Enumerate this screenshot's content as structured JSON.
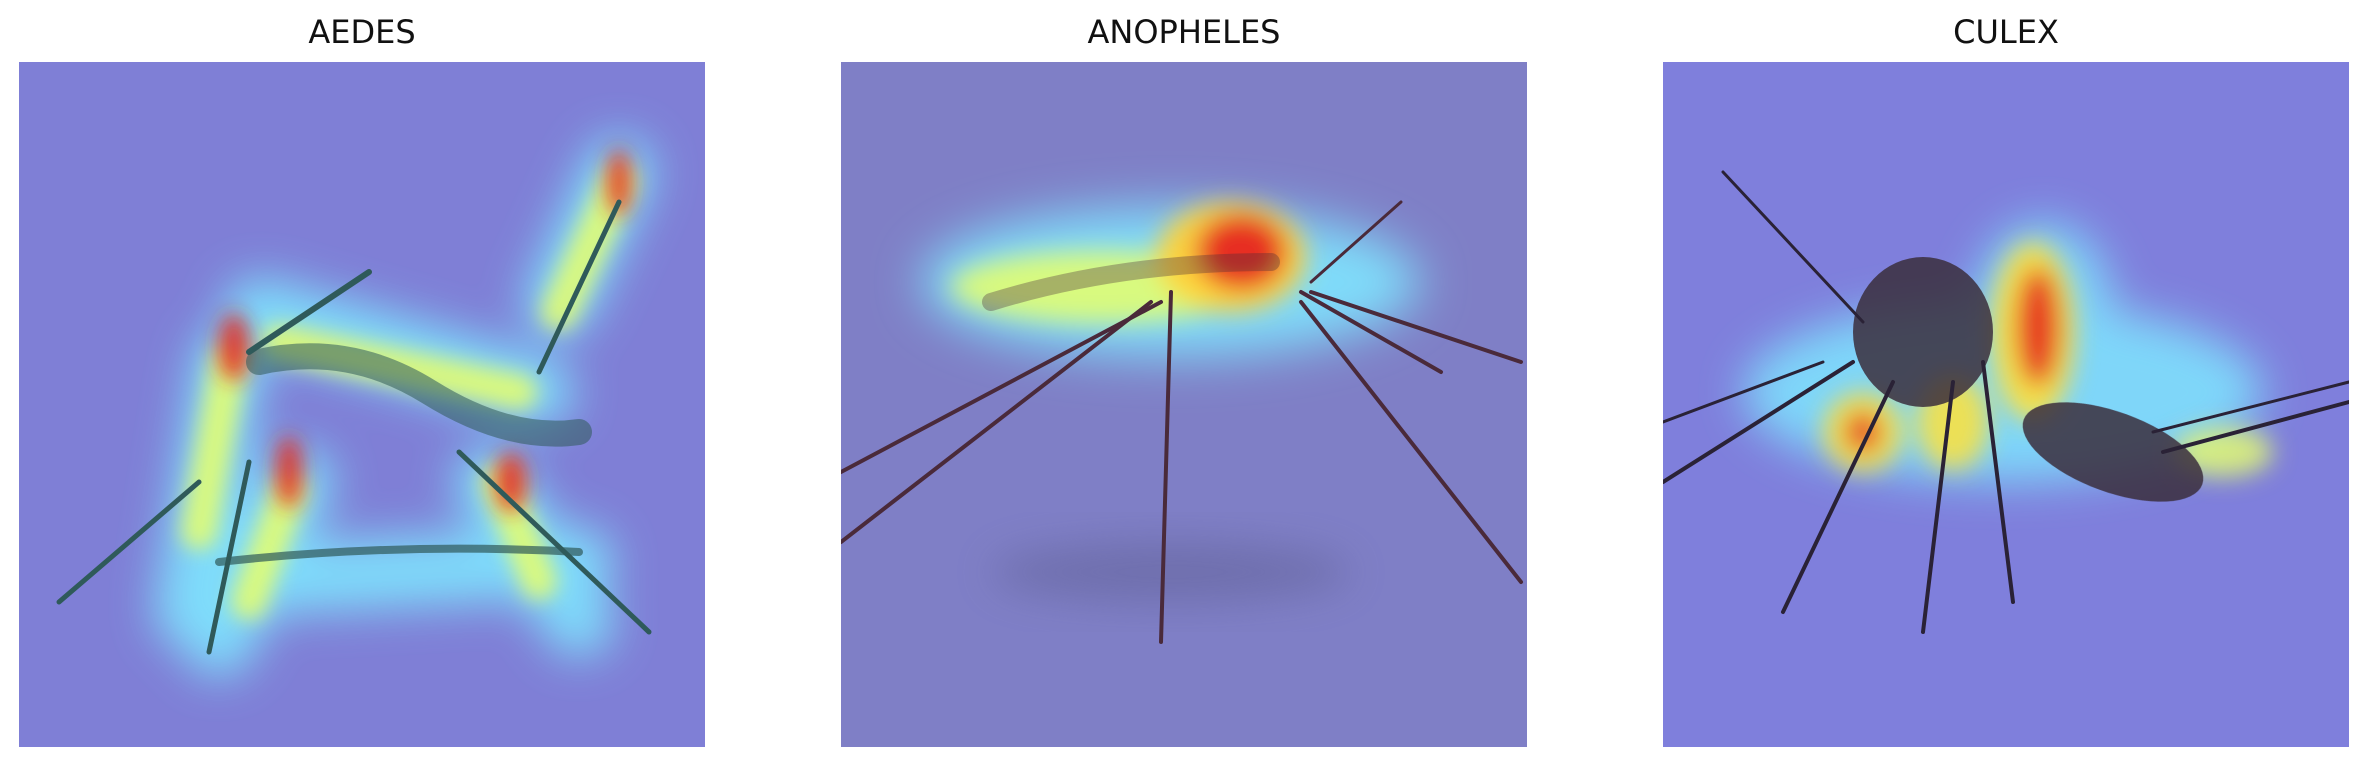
{
  "panels": [
    {
      "title": "AEDES",
      "image_description": "Grad-CAM heatmap overlay on an Aedes mosquito photo"
    },
    {
      "title": "ANOPHELES",
      "image_description": "Grad-CAM heatmap overlay on an Anopheles mosquito photo"
    },
    {
      "title": "CULEX",
      "image_description": "Grad-CAM heatmap overlay on a Culex mosquito photo"
    }
  ],
  "colors": {
    "overlay_base": "#7f7fd6",
    "heat_low": "#7fe0ff",
    "heat_mid": "#ffe23a",
    "heat_high": "#e6261f",
    "insect": "#3a2d3c"
  }
}
